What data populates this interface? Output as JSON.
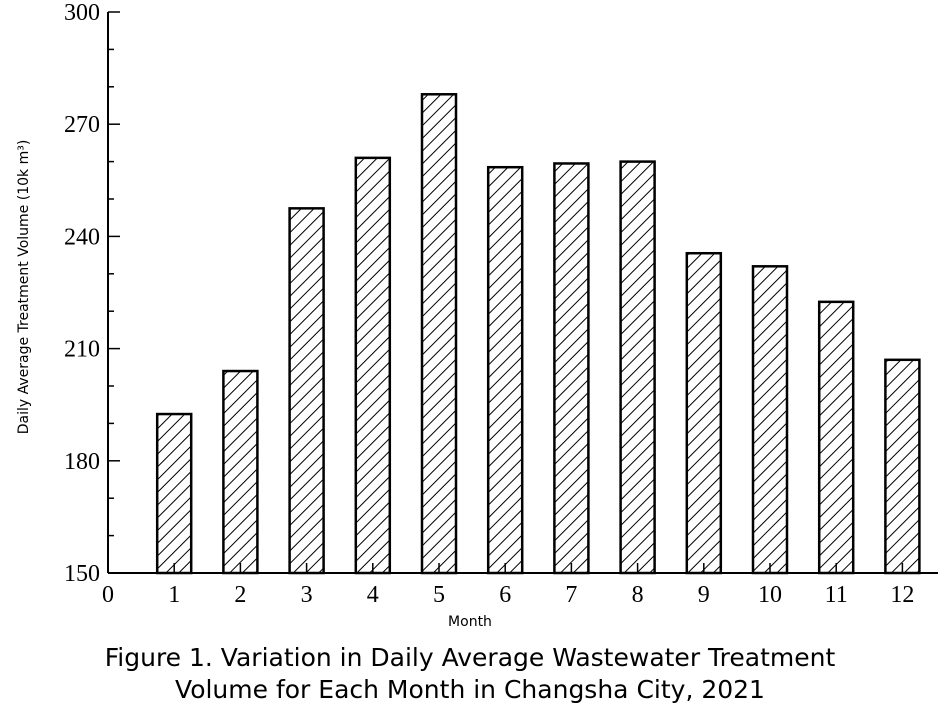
{
  "chart_data": {
    "type": "bar",
    "categories": [
      "1",
      "2",
      "3",
      "4",
      "5",
      "6",
      "7",
      "8",
      "9",
      "10",
      "11",
      "12"
    ],
    "values": [
      192.5,
      204,
      247.5,
      261,
      278,
      258.5,
      259.5,
      260,
      235.5,
      232,
      222.5,
      207
    ],
    "xlabel": "Month",
    "ylabel": "Daily Average Treatment Volume (10k m³)",
    "ylim": [
      150,
      300
    ],
    "yticks": [
      "150",
      "180",
      "210",
      "240",
      "270",
      "300"
    ],
    "xzero_label": "0",
    "grid": false,
    "bar_fill": "diagonal-hatch",
    "bar_color": "#000000"
  },
  "caption": {
    "line1": "Figure 1. Variation in Daily Average Wastewater Treatment",
    "line2": "Volume for Each Month in Changsha City, 2021"
  }
}
